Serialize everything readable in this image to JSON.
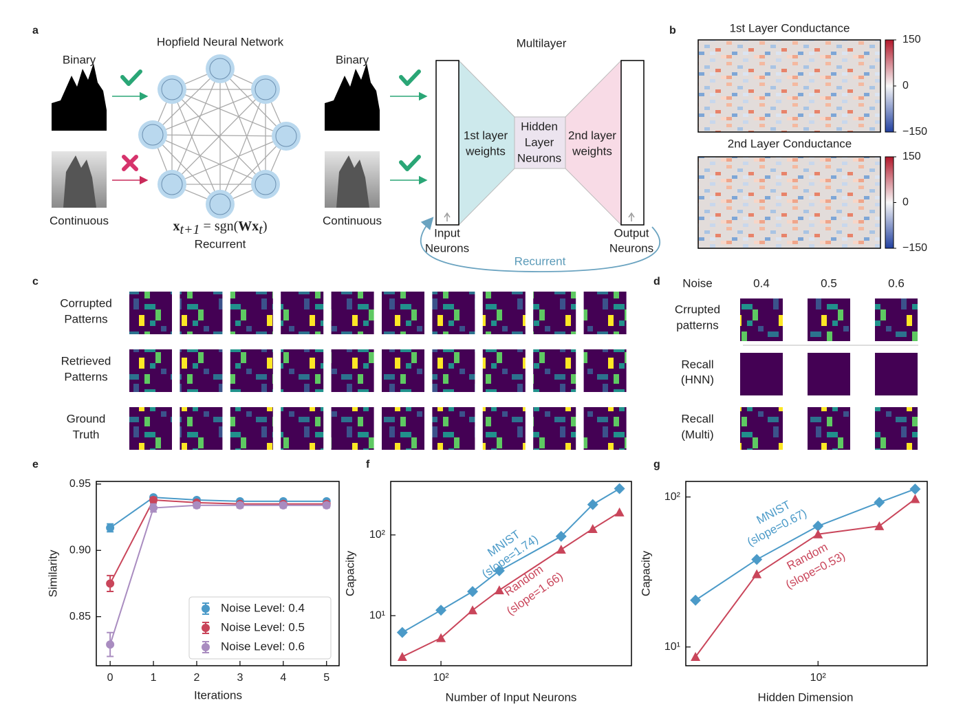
{
  "panel_labels": [
    "a",
    "b",
    "c",
    "d",
    "e",
    "f",
    "g"
  ],
  "panel_a": {
    "hopfield_title": "Hopfield Neural Network",
    "multilayer_title": "Multilayer",
    "binary": "Binary",
    "continuous": "Continuous",
    "equation": [
      "x",
      "t+1",
      " = sgn(",
      "Wx",
      "t",
      ")"
    ],
    "recurrent": "Recurrent",
    "first_weights": [
      "1st layer",
      "weights"
    ],
    "hidden": [
      "Hidden",
      "Layer",
      "Neurons"
    ],
    "second_weights": [
      "2nd layer",
      "weights"
    ],
    "input": [
      "Input",
      "Neurons"
    ],
    "output": [
      "Output",
      "Neurons"
    ]
  },
  "panel_b": {
    "titles": [
      "1st Layer Conductance",
      "2nd Layer Conductance"
    ],
    "clim": [
      -150,
      150
    ],
    "colorbar_ticks": [
      150,
      0,
      {
        "value": -150,
        "label": "−150"
      }
    ]
  },
  "panel_c": {
    "row_labels": [
      [
        "Corrupted",
        "Patterns"
      ],
      [
        "Retrieved",
        "Patterns"
      ],
      [
        "Ground",
        "Truth"
      ]
    ]
  },
  "panel_d": {
    "noise_label": "Noise",
    "noise_levels": [
      0.4,
      0.5,
      0.6
    ],
    "row_labels": [
      [
        "Crrupted",
        "patterns"
      ],
      [
        "Recall",
        "(HNN)"
      ],
      [
        "Recall",
        "(Multi)"
      ]
    ]
  },
  "chart_data": [
    {
      "type": "line",
      "xlabel": "Iterations",
      "ylabel": "Similarity",
      "x": [
        0,
        1,
        2,
        3,
        4,
        5
      ],
      "xlim": [
        -0.32,
        5.29
      ],
      "ylim": [
        0.813,
        0.952
      ],
      "xticks": [
        0,
        1,
        2,
        3,
        4,
        5
      ],
      "yticks": [
        0.85,
        {
          "value": 0.9,
          "label": "0.90"
        },
        0.95
      ],
      "legend": "lower right",
      "series": [
        {
          "name": "Noise Level: 0.4",
          "color": "#4b9ac8",
          "marker": "circle",
          "values": [
            0.917,
            0.94,
            0.938,
            0.937,
            0.937,
            0.937
          ],
          "errors": [
            0.003,
            0.001,
            0.001,
            0.001,
            0.001,
            0.001
          ]
        },
        {
          "name": "Noise Level: 0.5",
          "color": "#c9455a",
          "marker": "circle",
          "values": [
            0.875,
            0.938,
            0.936,
            0.935,
            0.935,
            0.935
          ],
          "errors": [
            0.006,
            0.002,
            0.001,
            0.001,
            0.001,
            0.001
          ]
        },
        {
          "name": "Noise Level: 0.6",
          "color": "#a98cc0",
          "marker": "circle",
          "values": [
            0.829,
            0.932,
            0.934,
            0.934,
            0.934,
            0.934
          ],
          "errors": [
            0.009,
            0.003,
            0.002,
            0.002,
            0.002,
            0.002
          ]
        }
      ]
    },
    {
      "type": "line",
      "xlabel": "Number of Input Neurons",
      "ylabel": "Capacity",
      "xscale": "log",
      "yscale": "log",
      "x": [
        64,
        100,
        144,
        196,
        400,
        576,
        784
      ],
      "xlim": [
        56,
        900
      ],
      "ylim": [
        2.4,
        460
      ],
      "xticks": [
        {
          "value": 100,
          "label": "10²"
        }
      ],
      "yticks": [
        {
          "value": 10,
          "label": "10¹"
        },
        {
          "value": 100,
          "label": "10²"
        }
      ],
      "annotations": [
        "(slope=1.74)",
        "(slope=1.66)"
      ],
      "series": [
        {
          "name": "MNIST",
          "color": "#4b9ac8",
          "marker": "diamond",
          "values": [
            6.2,
            11.7,
            19.9,
            36,
            96,
            238,
            374
          ]
        },
        {
          "name": "Random",
          "color": "#c9455a",
          "marker": "triangle",
          "values": [
            3.1,
            5.3,
            11.7,
            20.7,
            66,
            119,
            191
          ]
        }
      ]
    },
    {
      "type": "line",
      "xlabel": "Hidden Dimension",
      "ylabel": "Capacity",
      "xscale": "log",
      "yscale": "log",
      "x": [
        25,
        50,
        100,
        200,
        300
      ],
      "xlim": [
        22.4,
        344
      ],
      "ylim": [
        7.5,
        127
      ],
      "xticks": [
        {
          "value": 100,
          "label": "10²"
        }
      ],
      "yticks": [
        {
          "value": 10,
          "label": "10¹"
        },
        {
          "value": 100,
          "label": "10²"
        }
      ],
      "annotations": [
        "(slope=0.67)",
        "(slope=0.53)"
      ],
      "series": [
        {
          "name": "MNIST",
          "color": "#4b9ac8",
          "marker": "diamond",
          "values": [
            20.5,
            38.3,
            64,
            92,
            113
          ]
        },
        {
          "name": "Random",
          "color": "#c9455a",
          "marker": "triangle",
          "values": [
            8.6,
            30.6,
            56.5,
            64,
            97
          ]
        }
      ]
    }
  ]
}
